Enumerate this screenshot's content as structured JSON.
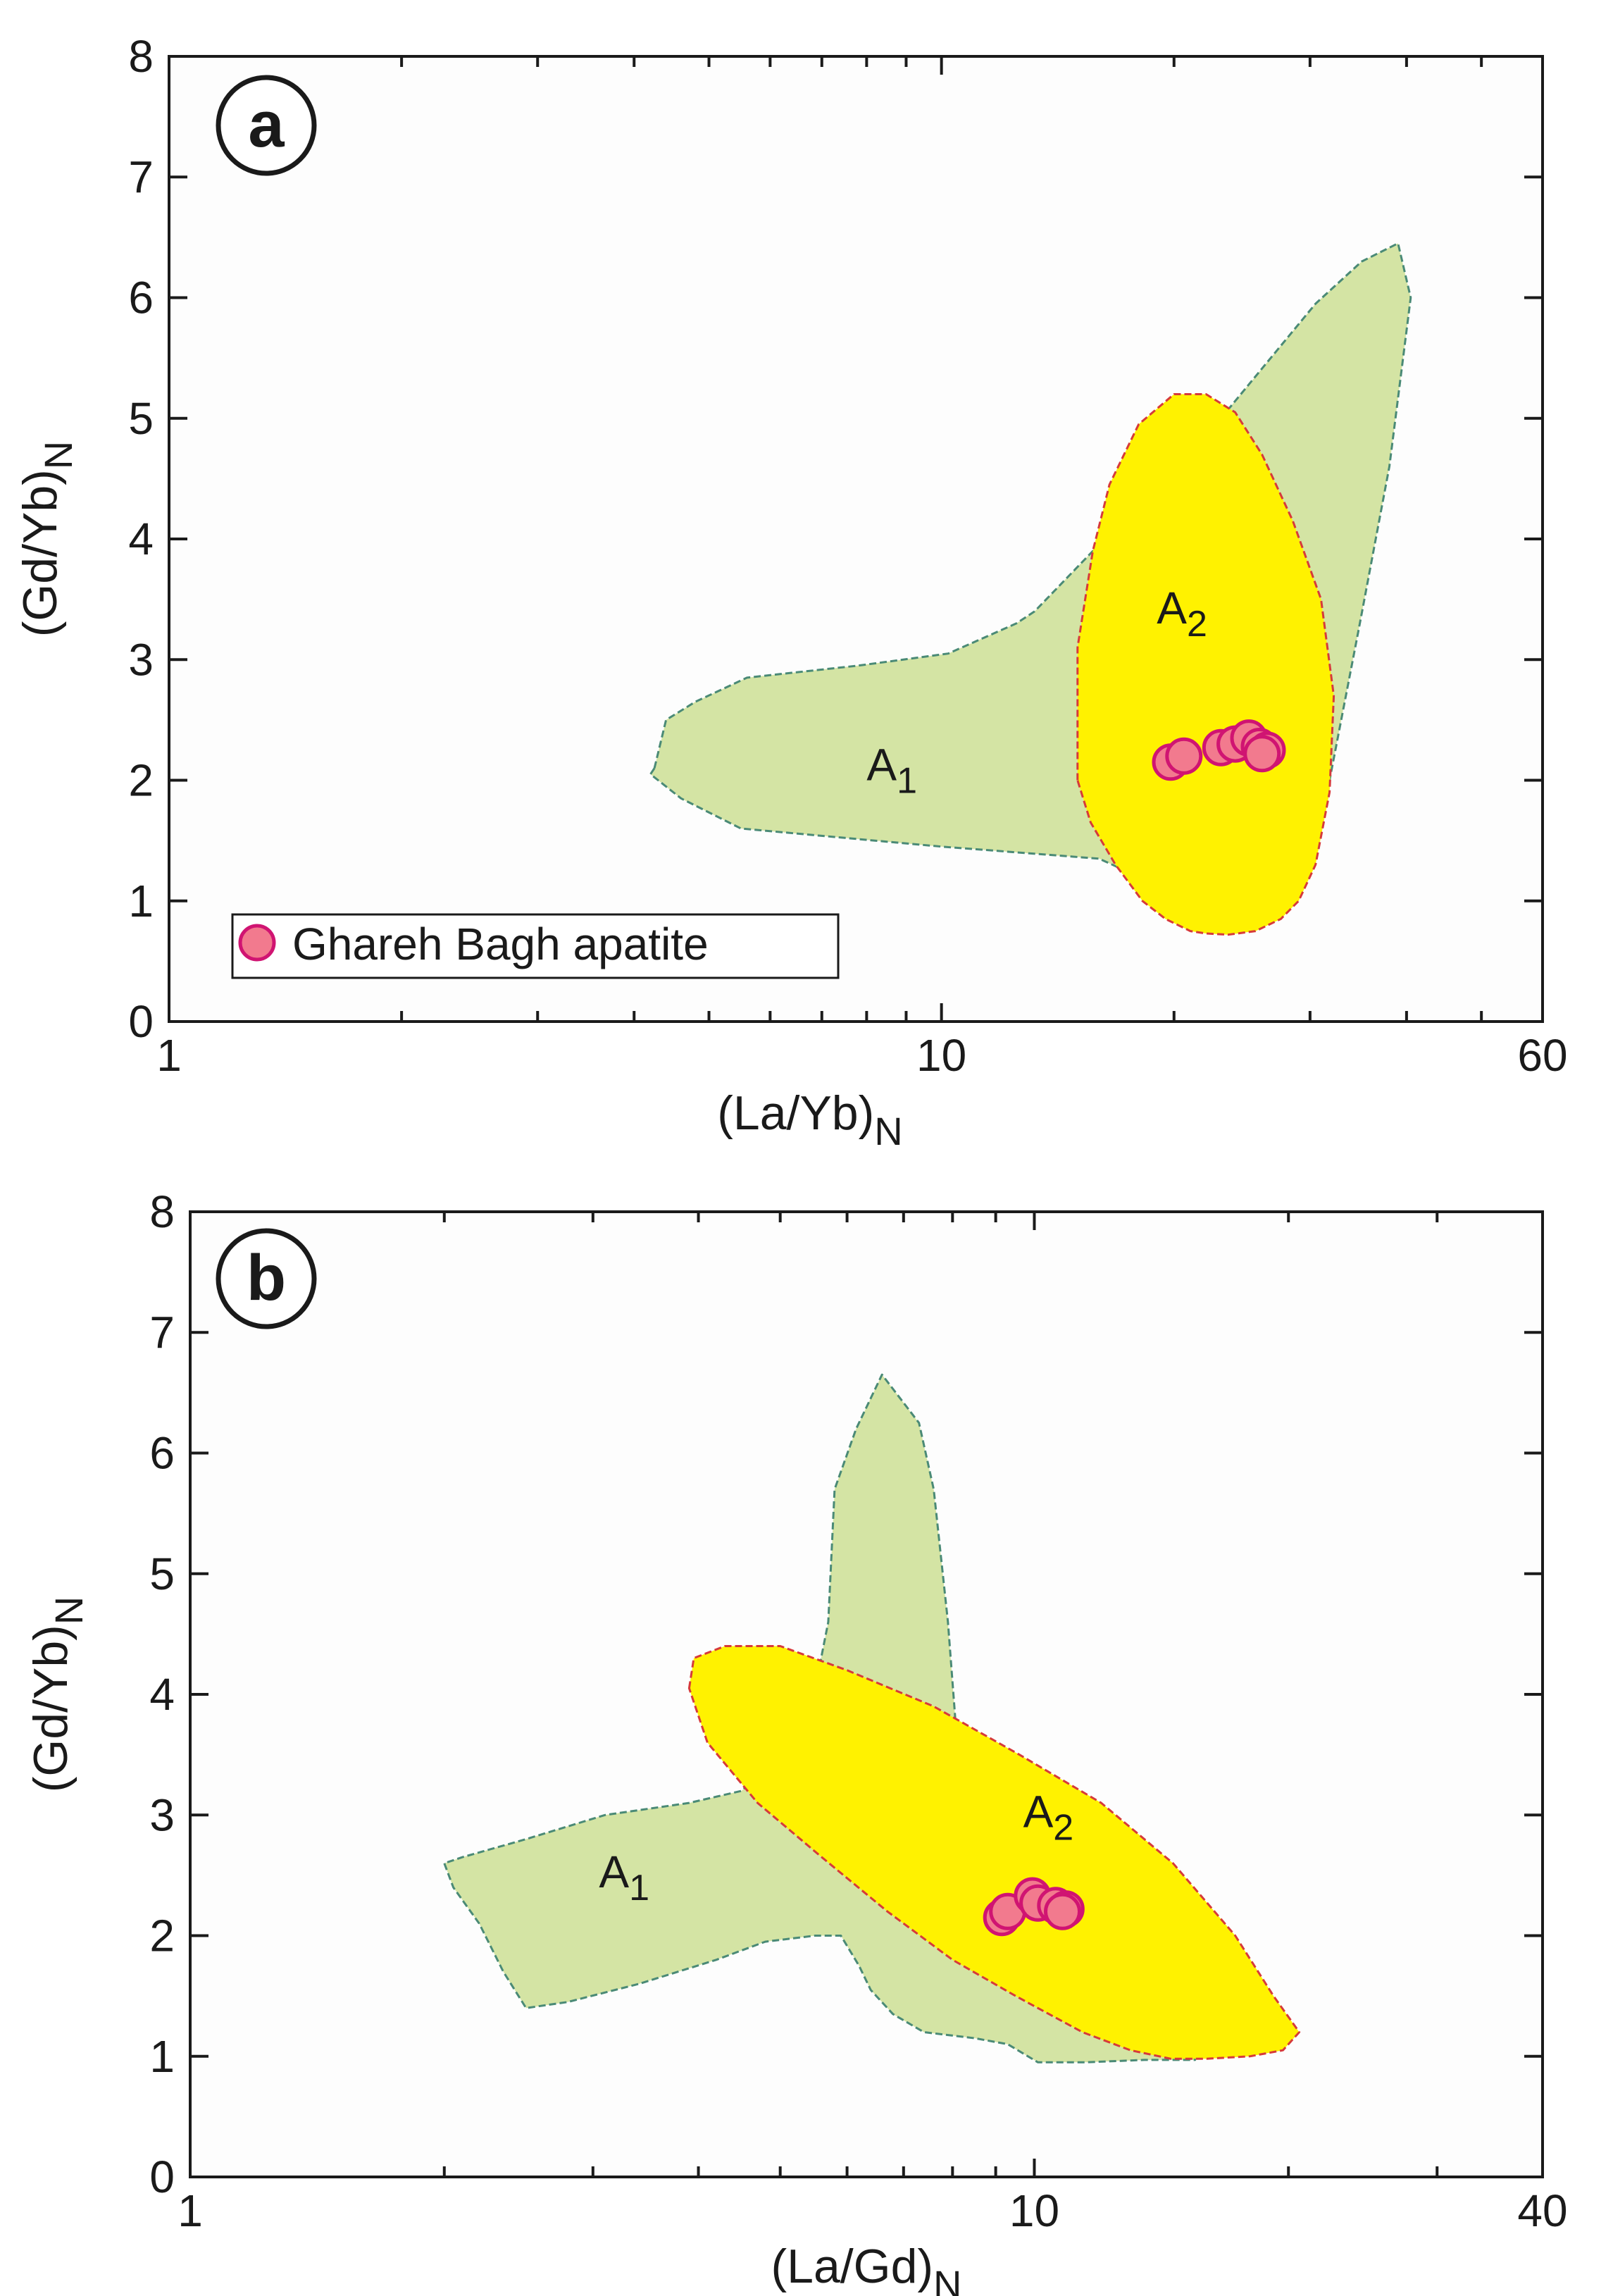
{
  "colors": {
    "field_a1_fill": "#d4e4a4",
    "field_a1_stroke": "#4a8a76",
    "field_a2_fill": "#fff200",
    "field_a2_stroke": "#d63a3a",
    "marker_fill": "#f27a8e",
    "marker_stroke": "#d01472",
    "frame": "#1a1a1a"
  },
  "legend": {
    "label": "Ghareh Bagh apatite",
    "marker_icon": "circle-marker-icon"
  },
  "chart_data": [
    {
      "panel": "a",
      "type": "scatter",
      "x_scale": "log",
      "xlim": [
        1,
        60
      ],
      "ylim": [
        0,
        8
      ],
      "x_tick_labels": [
        {
          "value": 1,
          "label": "1"
        },
        {
          "value": 10,
          "label": "10"
        },
        {
          "value": 60,
          "label": "60"
        }
      ],
      "y_tick_labels": [
        "0",
        "1",
        "2",
        "3",
        "4",
        "5",
        "6",
        "7",
        "8"
      ],
      "xlabel": {
        "main": "(La/Yb)",
        "sub": "N"
      },
      "ylabel": {
        "main": "(Gd/Yb)",
        "sub": "N"
      },
      "legend_position": "bottom-left",
      "fields": [
        {
          "name": "A1",
          "label_main": "A",
          "label_sub": "1",
          "label_at": [
            8.0,
            2.0
          ],
          "points": [
            [
              4.25,
              2.1
            ],
            [
              4.4,
              2.5
            ],
            [
              4.8,
              2.65
            ],
            [
              5.6,
              2.85
            ],
            [
              7.8,
              2.95
            ],
            [
              10.2,
              3.05
            ],
            [
              12.5,
              3.3
            ],
            [
              13.2,
              3.4
            ],
            [
              23.0,
              5.0
            ],
            [
              30.5,
              5.95
            ],
            [
              35.0,
              6.3
            ],
            [
              39.0,
              6.45
            ],
            [
              40.5,
              6.0
            ],
            [
              38.0,
              4.6
            ],
            [
              34.8,
              3.3
            ],
            [
              31.8,
              2.0
            ],
            [
              30.5,
              1.45
            ],
            [
              24.0,
              1.1
            ],
            [
              20.0,
              1.1
            ],
            [
              18.0,
              1.2
            ],
            [
              16.0,
              1.35
            ],
            [
              10.0,
              1.45
            ],
            [
              5.5,
              1.6
            ],
            [
              4.6,
              1.85
            ],
            [
              4.2,
              2.05
            ]
          ]
        },
        {
          "name": "A2",
          "label_main": "A",
          "label_sub": "2",
          "label_at": [
            19.0,
            3.3
          ],
          "points": [
            [
              15.0,
              2.0
            ],
            [
              15.0,
              3.1
            ],
            [
              15.7,
              3.9
            ],
            [
              16.5,
              4.45
            ],
            [
              18.0,
              4.95
            ],
            [
              20.0,
              5.2
            ],
            [
              22.0,
              5.2
            ],
            [
              24.0,
              5.05
            ],
            [
              26.0,
              4.7
            ],
            [
              28.5,
              4.15
            ],
            [
              31.0,
              3.5
            ],
            [
              32.2,
              2.7
            ],
            [
              31.8,
              1.9
            ],
            [
              30.5,
              1.3
            ],
            [
              29.0,
              1.0
            ],
            [
              27.5,
              0.85
            ],
            [
              25.5,
              0.75
            ],
            [
              23.5,
              0.72
            ],
            [
              22.0,
              0.73
            ],
            [
              21.0,
              0.75
            ],
            [
              19.5,
              0.85
            ],
            [
              18.2,
              1.0
            ],
            [
              16.8,
              1.3
            ],
            [
              15.6,
              1.65
            ]
          ]
        }
      ],
      "series": [
        {
          "name": "Ghareh Bagh apatite",
          "x": [
            19.8,
            20.6,
            23.0,
            24.0,
            25.0,
            25.8,
            26.4,
            26.0
          ],
          "y": [
            2.15,
            2.2,
            2.27,
            2.3,
            2.35,
            2.28,
            2.25,
            2.22
          ]
        }
      ]
    },
    {
      "panel": "b",
      "type": "scatter",
      "x_scale": "log",
      "xlim": [
        1,
        40
      ],
      "ylim": [
        0,
        8
      ],
      "x_tick_labels": [
        {
          "value": 1,
          "label": "1"
        },
        {
          "value": 10,
          "label": "10"
        },
        {
          "value": 40,
          "label": "40"
        }
      ],
      "y_tick_labels": [
        "0",
        "1",
        "2",
        "3",
        "4",
        "5",
        "6",
        "7",
        "8"
      ],
      "xlabel": {
        "main": "(La/Gd)",
        "sub": "N"
      },
      "ylabel": {
        "main": "(Gd/Yb)",
        "sub": "N"
      },
      "fields": [
        {
          "name": "A1",
          "label_main": "A",
          "label_sub": "1",
          "label_at": [
            3.05,
            2.4
          ],
          "points": [
            [
              2.0,
              2.6
            ],
            [
              2.05,
              2.4
            ],
            [
              2.2,
              2.1
            ],
            [
              2.35,
              1.7
            ],
            [
              2.5,
              1.4
            ],
            [
              2.8,
              1.45
            ],
            [
              3.4,
              1.6
            ],
            [
              4.2,
              1.8
            ],
            [
              4.8,
              1.95
            ],
            [
              5.5,
              2.0
            ],
            [
              5.9,
              2.0
            ],
            [
              6.2,
              1.75
            ],
            [
              6.4,
              1.55
            ],
            [
              6.8,
              1.35
            ],
            [
              7.4,
              1.2
            ],
            [
              8.5,
              1.15
            ],
            [
              9.3,
              1.1
            ],
            [
              10.1,
              0.95
            ],
            [
              11.5,
              0.95
            ],
            [
              13.5,
              0.97
            ],
            [
              15.5,
              0.97
            ],
            [
              15.2,
              1.15
            ],
            [
              12.0,
              1.6
            ],
            [
              10.0,
              2.3
            ],
            [
              8.5,
              3.1
            ],
            [
              8.1,
              3.6
            ],
            [
              7.9,
              4.6
            ],
            [
              7.6,
              5.7
            ],
            [
              7.3,
              6.25
            ],
            [
              6.6,
              6.65
            ],
            [
              6.15,
              6.2
            ],
            [
              5.8,
              5.7
            ],
            [
              5.7,
              4.6
            ],
            [
              5.5,
              4.05
            ],
            [
              5.0,
              3.5
            ],
            [
              4.5,
              3.2
            ],
            [
              3.9,
              3.1
            ],
            [
              3.1,
              3.0
            ],
            [
              2.5,
              2.8
            ],
            [
              2.1,
              2.65
            ]
          ]
        },
        {
          "name": "A2",
          "label_main": "A",
          "label_sub": "2",
          "label_at": [
            9.7,
            2.9
          ],
          "points": [
            [
              3.9,
              4.05
            ],
            [
              3.95,
              4.3
            ],
            [
              4.3,
              4.4
            ],
            [
              5.0,
              4.4
            ],
            [
              6.0,
              4.2
            ],
            [
              7.6,
              3.9
            ],
            [
              9.6,
              3.5
            ],
            [
              12.0,
              3.1
            ],
            [
              14.6,
              2.6
            ],
            [
              17.3,
              2.0
            ],
            [
              19.2,
              1.5
            ],
            [
              20.6,
              1.2
            ],
            [
              19.7,
              1.05
            ],
            [
              18.0,
              1.0
            ],
            [
              16.0,
              0.98
            ],
            [
              14.5,
              0.98
            ],
            [
              13.0,
              1.05
            ],
            [
              11.4,
              1.2
            ],
            [
              9.5,
              1.5
            ],
            [
              8.0,
              1.8
            ],
            [
              6.7,
              2.2
            ],
            [
              5.6,
              2.65
            ],
            [
              4.7,
              3.1
            ],
            [
              4.1,
              3.6
            ]
          ]
        }
      ],
      "series": [
        {
          "name": "Ghareh Bagh apatite",
          "x": [
            9.15,
            9.3,
            9.95,
            10.1,
            10.6,
            10.9,
            10.8
          ],
          "y": [
            2.15,
            2.2,
            2.33,
            2.27,
            2.25,
            2.22,
            2.2
          ]
        }
      ]
    }
  ]
}
